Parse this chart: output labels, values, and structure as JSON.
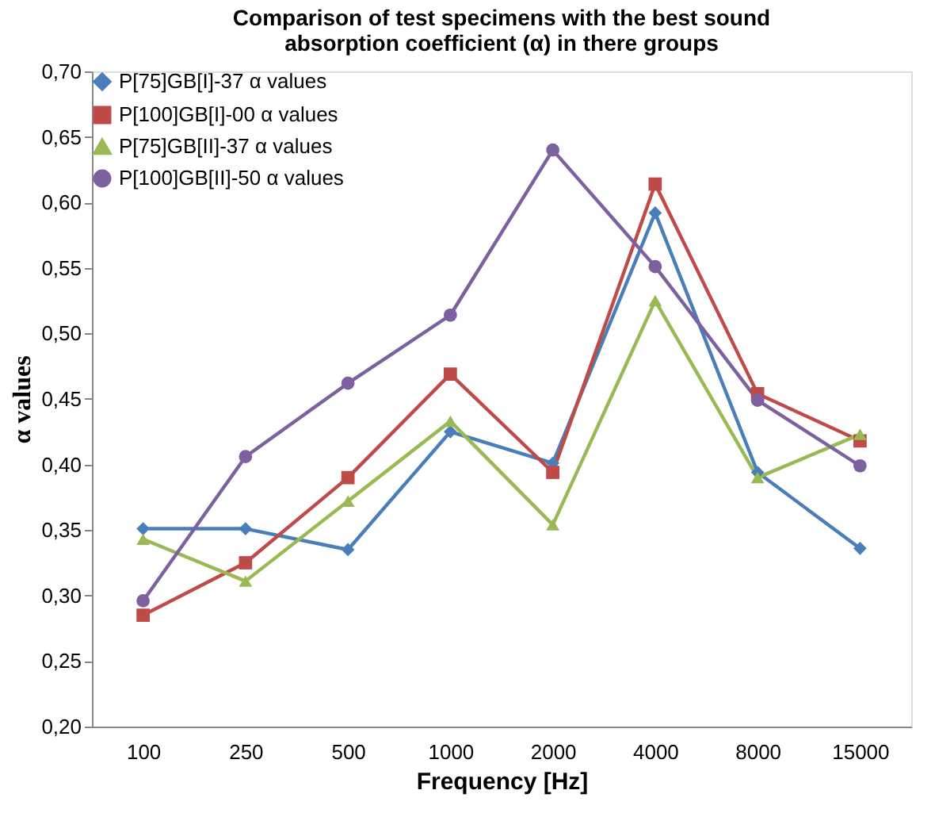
{
  "chart_data": {
    "type": "line",
    "title": "Comparison of test specimens with the best sound absorption coefficient (α) in there groups",
    "xlabel": "Frequency [Hz]",
    "ylabel": "α values",
    "categories": [
      "100",
      "250",
      "500",
      "1000",
      "2000",
      "4000",
      "8000",
      "15000"
    ],
    "series": [
      {
        "name": "P[75]GB[I]-37 α values",
        "color": "#4a7ebb",
        "marker": "diamond",
        "values": [
          0.351,
          0.351,
          0.335,
          0.425,
          0.401,
          0.592,
          0.394,
          0.336
        ]
      },
      {
        "name": "P[100]GB[I]-00 α values",
        "color": "#be4b48",
        "marker": "square",
        "values": [
          0.285,
          0.325,
          0.39,
          0.469,
          0.394,
          0.614,
          0.454,
          0.418
        ]
      },
      {
        "name": "P[75]GB[II]-37  α values",
        "color": "#98b954",
        "marker": "triangle",
        "values": [
          0.343,
          0.311,
          0.372,
          0.433,
          0.354,
          0.525,
          0.39,
          0.423
        ]
      },
      {
        "name": "P[100]GB[II]-50  α values",
        "color": "#7d60a0",
        "marker": "circle",
        "values": [
          0.296,
          0.406,
          0.462,
          0.514,
          0.64,
          0.551,
          0.449,
          0.399
        ]
      }
    ],
    "ylim": [
      0.2,
      0.7
    ],
    "yticks": [
      {
        "value": 0.2,
        "label": "0,20"
      },
      {
        "value": 0.25,
        "label": "0,25"
      },
      {
        "value": 0.3,
        "label": "0,30"
      },
      {
        "value": 0.35,
        "label": "0,35"
      },
      {
        "value": 0.4,
        "label": "0,40"
      },
      {
        "value": 0.45,
        "label": "0,45"
      },
      {
        "value": 0.5,
        "label": "0,50"
      },
      {
        "value": 0.55,
        "label": "0,55"
      },
      {
        "value": 0.6,
        "label": "0,60"
      },
      {
        "value": 0.65,
        "label": "0,65"
      },
      {
        "value": 0.7,
        "label": "0,70"
      }
    ],
    "grid": false,
    "legend": "top left",
    "line_style": "solid"
  }
}
